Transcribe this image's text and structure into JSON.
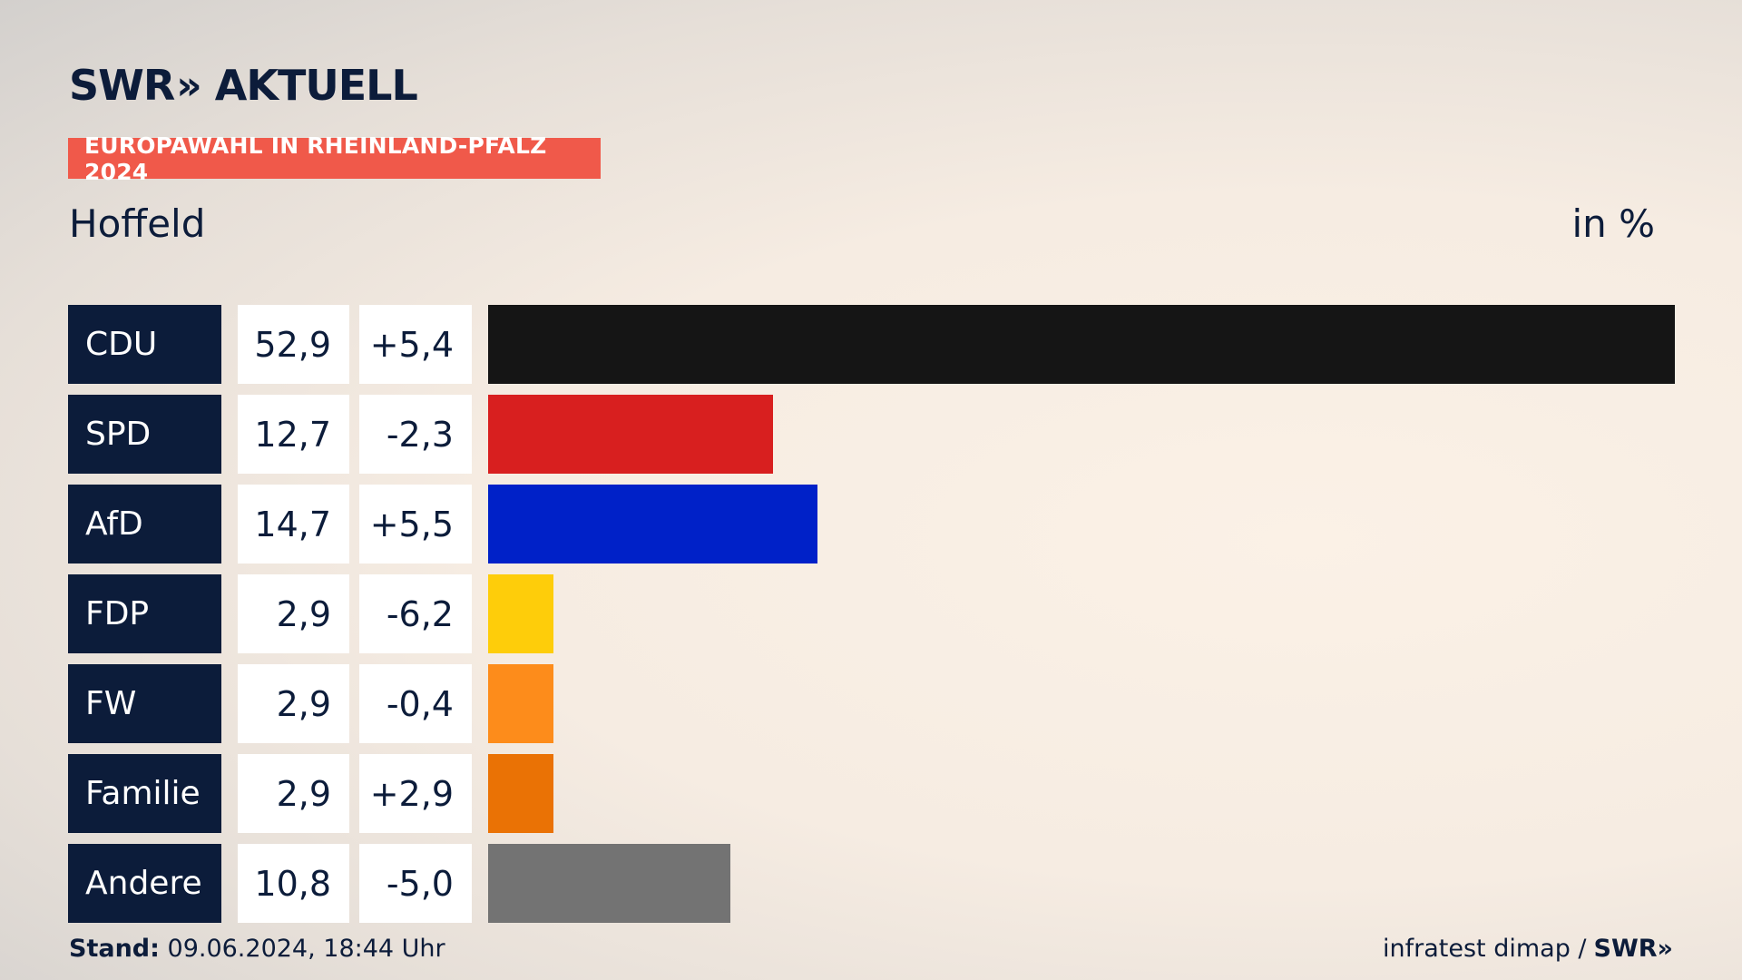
{
  "header": {
    "logo_left": "SWR",
    "logo_chevrons": "»",
    "logo_right": "AKTUELL",
    "badge": "EUROPAWAHL IN RHEINLAND-PFALZ 2024",
    "place": "Hoffeld",
    "unit": "in %"
  },
  "footer": {
    "stand_label": "Stand:",
    "stand_value": "09.06.2024, 18:44 Uhr",
    "source": "infratest dimap /",
    "source_brand": "SWR»"
  },
  "chart_data": {
    "type": "bar",
    "orientation": "horizontal",
    "max_value": 52.9,
    "categories": [
      "CDU",
      "SPD",
      "AfD",
      "FDP",
      "FW",
      "Familie",
      "Andere"
    ],
    "values": [
      52.9,
      12.7,
      14.7,
      2.9,
      2.9,
      2.9,
      10.8
    ],
    "values_label": [
      "52,9",
      "12,7",
      "14,7",
      "2,9",
      "2,9",
      "2,9",
      "10,8"
    ],
    "diff_label": [
      "+5,4",
      "-2,3",
      "+5,5",
      "-6,2",
      "-0,4",
      "+2,9",
      "-5,0"
    ],
    "colors": [
      "#151515",
      "#d81f1f",
      "#0021c8",
      "#fecd0a",
      "#fd8c1b",
      "#ea7205",
      "#737373"
    ]
  }
}
